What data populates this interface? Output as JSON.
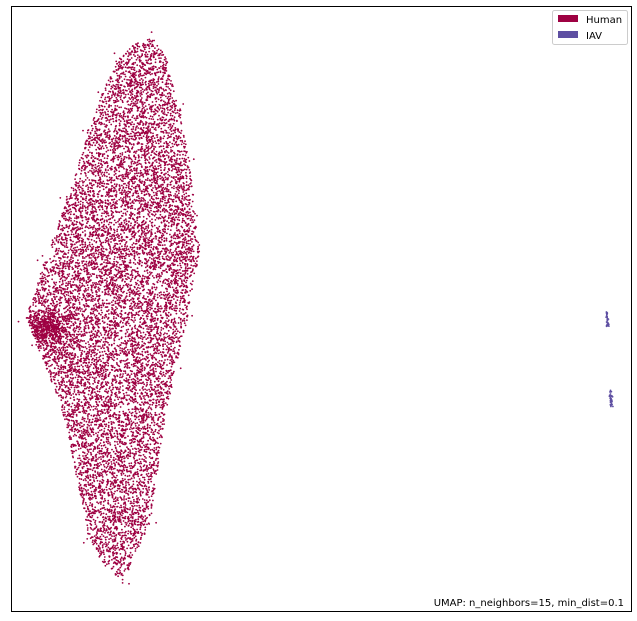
{
  "chart_data": {
    "type": "scatter",
    "title": "",
    "xlabel": "",
    "ylabel": "",
    "grid": false,
    "axis_ticks": false,
    "legend_placement": "top-right",
    "annotation": "UMAP: n_neighbors=15, min_dist=0.1",
    "series": [
      {
        "name": "Human",
        "color": "#9e0142",
        "approx_point_count": 11000,
        "cluster_outline": [
          [
            -7.7,
            10.5
          ],
          [
            -7.0,
            10.8
          ],
          [
            -6.3,
            10.9
          ],
          [
            -5.8,
            10.6
          ],
          [
            -5.2,
            9.5
          ],
          [
            -4.8,
            8.5
          ],
          [
            -4.6,
            7.6
          ],
          [
            -4.4,
            6.9
          ],
          [
            -4.9,
            5.6
          ],
          [
            -5.4,
            4.6
          ],
          [
            -5.9,
            3.4
          ],
          [
            -6.2,
            2.4
          ],
          [
            -6.4,
            1.7
          ],
          [
            -7.2,
            0.9
          ],
          [
            -7.6,
            0.6
          ],
          [
            -8.3,
            0.9
          ],
          [
            -8.9,
            1.4
          ],
          [
            -9.3,
            2.4
          ],
          [
            -10.0,
            3.9
          ],
          [
            -11.0,
            5.1
          ],
          [
            -11.4,
            5.6
          ],
          [
            -10.7,
            6.6
          ],
          [
            -9.7,
            7.9
          ],
          [
            -8.9,
            9.1
          ],
          [
            -8.3,
            9.9
          ]
        ],
        "dense_region": [
          -10.6,
          5.4
        ]
      },
      {
        "name": "IAV",
        "color": "#5e4fa2",
        "clusters": [
          {
            "x_range": [
              12.0,
              12.05
            ],
            "y_range": [
              5.4,
              5.7
            ]
          },
          {
            "x_range": [
              12.15,
              12.2
            ],
            "y_range": [
              3.9,
              4.2
            ]
          }
        ]
      }
    ],
    "xlim": [
      -12,
      13
    ],
    "ylim": [
      0,
      11.5
    ]
  },
  "legend": {
    "items": [
      {
        "label": "Human",
        "color": "#9e0142"
      },
      {
        "label": "IAV",
        "color": "#5e4fa2"
      }
    ]
  },
  "axes": {
    "frame_color": "#000000",
    "background": "#ffffff"
  }
}
